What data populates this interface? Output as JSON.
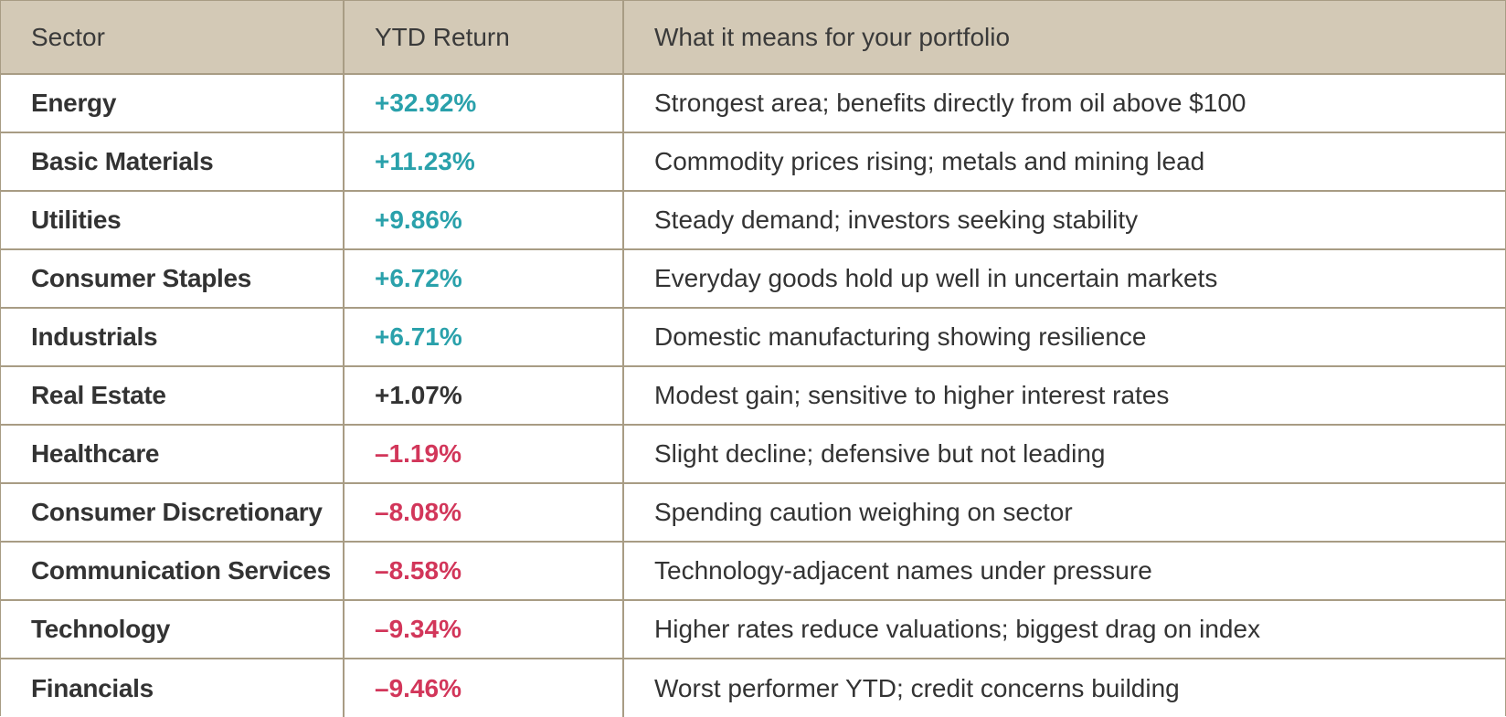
{
  "table": {
    "headers": {
      "sector": "Sector",
      "ytd_return": "YTD Return",
      "meaning": "What it means for your portfolio"
    },
    "rows": [
      {
        "sector": "Energy",
        "ytd_return": "+32.92%",
        "trend": "positive",
        "meaning": "Strongest area; benefits directly from oil above $100"
      },
      {
        "sector": "Basic Materials",
        "ytd_return": "+11.23%",
        "trend": "positive",
        "meaning": "Commodity prices rising; metals and mining lead"
      },
      {
        "sector": "Utilities",
        "ytd_return": "+9.86%",
        "trend": "positive",
        "meaning": "Steady demand; investors seeking stability"
      },
      {
        "sector": "Consumer Staples",
        "ytd_return": "+6.72%",
        "trend": "positive",
        "meaning": "Everyday goods hold up well in uncertain markets"
      },
      {
        "sector": "Industrials",
        "ytd_return": "+6.71%",
        "trend": "positive",
        "meaning": "Domestic manufacturing showing resilience"
      },
      {
        "sector": "Real Estate",
        "ytd_return": "+1.07%",
        "trend": "neutral",
        "meaning": "Modest gain; sensitive to higher interest rates"
      },
      {
        "sector": "Healthcare",
        "ytd_return": "–1.19%",
        "trend": "negative",
        "meaning": "Slight decline; defensive but not leading"
      },
      {
        "sector": "Consumer Discretionary",
        "ytd_return": "–8.08%",
        "trend": "negative",
        "meaning": "Spending caution weighing on sector"
      },
      {
        "sector": "Communication Services",
        "ytd_return": "–8.58%",
        "trend": "negative",
        "meaning": "Technology-adjacent names under pressure"
      },
      {
        "sector": "Technology",
        "ytd_return": "–9.34%",
        "trend": "negative",
        "meaning": "Higher rates reduce valuations; biggest drag on index"
      },
      {
        "sector": "Financials",
        "ytd_return": "–9.46%",
        "trend": "negative",
        "meaning": "Worst performer YTD; credit concerns building"
      }
    ]
  },
  "colors": {
    "header_background": "#d3c9b6",
    "border": "#a89c84",
    "positive": "#2aa1ab",
    "neutral": "#333333",
    "negative": "#d2365a"
  }
}
